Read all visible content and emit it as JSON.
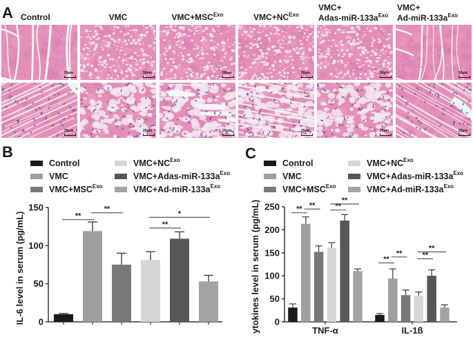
{
  "panels": {
    "A": {
      "letter": "A",
      "columns": [
        {
          "label": "Control",
          "sup": ""
        },
        {
          "label": "VMC",
          "sup": ""
        },
        {
          "label": "VMC+MSC",
          "sup": "Exo"
        },
        {
          "label": "VMC+NC",
          "sup": "Exo"
        },
        {
          "label_line1": "VMC+",
          "label": "Adas-miR-133a",
          "sup": "Exo"
        },
        {
          "label_line1": "VMC+",
          "label": "Ad-miR-133a",
          "sup": "Exo"
        }
      ],
      "rows": [
        {
          "magnification": "low",
          "scale_bar": "50μm"
        },
        {
          "magnification": "high",
          "scale_bar": "25μm"
        }
      ],
      "stain": "H&E"
    },
    "B": {
      "letter": "B"
    },
    "C": {
      "letter": "C"
    }
  },
  "legend": {
    "items": [
      {
        "label": "Control",
        "sup": "",
        "color": "#1a1a1a"
      },
      {
        "label": "VMC",
        "sup": "",
        "color": "#9e9e9e"
      },
      {
        "label": "VMC+MSC",
        "sup": "Exo",
        "color": "#787878"
      },
      {
        "label": "VMC+NC",
        "sup": "Exo",
        "color": "#d6d6d6"
      },
      {
        "label": "VMC+Adas-miR-133a",
        "sup": "Exo",
        "color": "#575757"
      },
      {
        "label": "VMC+Ad-miR-133a",
        "sup": "Exo",
        "color": "#a3a3a3"
      }
    ]
  },
  "chart_data": [
    {
      "panel": "B",
      "type": "bar",
      "title": "",
      "xlabel": "",
      "ylabel": "IL-6 level in serum (pg/mL)",
      "ylim": [
        0,
        150
      ],
      "yticks": [
        0,
        50,
        100,
        150
      ],
      "grid": false,
      "legend_position": "top",
      "categories": [
        "Control",
        "VMC",
        "VMC+MSC^Exo",
        "VMC+NC^Exo",
        "VMC+Adas-miR-133a^Exo",
        "VMC+Ad-miR-133a^Exo"
      ],
      "values": [
        10,
        119,
        75,
        81,
        109,
        53
      ],
      "errors": [
        1,
        12,
        15,
        11,
        9,
        8
      ],
      "colors": [
        "#1a1a1a",
        "#9e9e9e",
        "#787878",
        "#d6d6d6",
        "#575757",
        "#a3a3a3"
      ],
      "annotations": [
        {
          "from": 0,
          "to": 1,
          "label": "**"
        },
        {
          "from": 1,
          "to": 2,
          "label": "**"
        },
        {
          "from": 3,
          "to": 4,
          "label": "**"
        },
        {
          "from": 3,
          "to": 5,
          "label": "*"
        }
      ]
    },
    {
      "panel": "C",
      "type": "bar",
      "title": "",
      "xlabel": "",
      "ylabel": "Cytokines level in serum (pg/mL)",
      "ylim": [
        0,
        250
      ],
      "yticks": [
        0,
        50,
        100,
        150,
        200,
        250
      ],
      "grid": false,
      "legend_position": "top",
      "categories": [
        "TNF-α",
        "IL-1β"
      ],
      "series": [
        {
          "name": "Control",
          "values": [
            31,
            15
          ],
          "errors": [
            8,
            3
          ],
          "color": "#1a1a1a"
        },
        {
          "name": "VMC",
          "values": [
            213,
            94
          ],
          "errors": [
            15,
            21
          ],
          "color": "#9e9e9e"
        },
        {
          "name": "VMC+MSC^Exo",
          "values": [
            152,
            58
          ],
          "errors": [
            13,
            11
          ],
          "color": "#787878"
        },
        {
          "name": "VMC+NC^Exo",
          "values": [
            161,
            57
          ],
          "errors": [
            11,
            8
          ],
          "color": "#d6d6d6"
        },
        {
          "name": "VMC+Adas-miR-133a^Exo",
          "values": [
            220,
            100
          ],
          "errors": [
            13,
            13
          ],
          "color": "#575757"
        },
        {
          "name": "VMC+Ad-miR-133a^Exo",
          "values": [
            110,
            31
          ],
          "errors": [
            5,
            6
          ],
          "color": "#a3a3a3"
        }
      ],
      "annotations": [
        {
          "group": "TNF-α",
          "from": 0,
          "to": 1,
          "label": "**"
        },
        {
          "group": "TNF-α",
          "from": 1,
          "to": 2,
          "label": "**"
        },
        {
          "group": "TNF-α",
          "from": 3,
          "to": 4,
          "label": "**"
        },
        {
          "group": "TNF-α",
          "from": 3,
          "to": 5,
          "label": "**"
        },
        {
          "group": "IL-1β",
          "from": 0,
          "to": 1,
          "label": "**"
        },
        {
          "group": "IL-1β",
          "from": 1,
          "to": 2,
          "label": "**"
        },
        {
          "group": "IL-1β",
          "from": 3,
          "to": 4,
          "label": "**"
        },
        {
          "group": "IL-1β",
          "from": 3,
          "to": 5,
          "label": "**"
        }
      ]
    }
  ]
}
